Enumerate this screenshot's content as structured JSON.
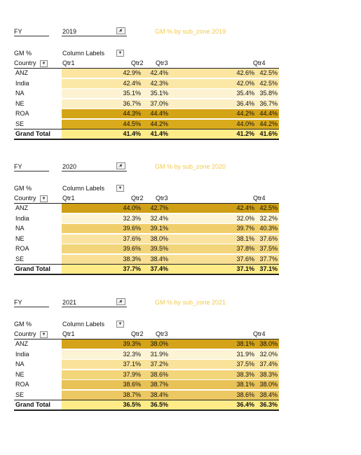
{
  "pivots": [
    {
      "fy_label": "FY",
      "fy_value": "2019",
      "title": "GM % by sub_zone 2019",
      "metric_label": "GM %",
      "column_labels": "Column Labels",
      "country_label": "Country",
      "quarters": [
        "Qtr1",
        "Qtr2",
        "Qtr3",
        "Qtr4"
      ],
      "rows": [
        {
          "name": "ANZ",
          "vals": [
            "42.9%",
            "42.4%",
            "42.6%",
            "42.5%"
          ],
          "color": "#fbe5a0"
        },
        {
          "name": "India",
          "vals": [
            "42.4%",
            "42.3%",
            "42.0%",
            "42.5%"
          ],
          "color": "#fbe7a6"
        },
        {
          "name": "NA",
          "vals": [
            "35.1%",
            "35.1%",
            "35.4%",
            "35.8%"
          ],
          "color": "#fdf3d3"
        },
        {
          "name": "NE",
          "vals": [
            "36.7%",
            "37.0%",
            "36.4%",
            "36.7%"
          ],
          "color": "#fcefc4"
        },
        {
          "name": "ROA",
          "vals": [
            "44.3%",
            "44.4%",
            "44.2%",
            "44.4%"
          ],
          "color": "#d4a417"
        },
        {
          "name": "SE",
          "vals": [
            "44.5%",
            "44.2%",
            "44.0%",
            "44.2%"
          ],
          "color": "#d9aa1c"
        }
      ],
      "total": {
        "name": "Grand Total",
        "vals": [
          "41.4%",
          "41.4%",
          "41.2%",
          "41.6%"
        ],
        "color": "#ffec88"
      }
    },
    {
      "fy_label": "FY",
      "fy_value": "2020",
      "title": "GM % by sub_zone 2020",
      "metric_label": "GM %",
      "column_labels": "Column Labels",
      "country_label": "Country",
      "quarters": [
        "Qtr1",
        "Qtr2",
        "Qtr3",
        "Qtr4"
      ],
      "rows": [
        {
          "name": "ANZ",
          "vals": [
            "44.0%",
            "42.7%",
            "42.4%",
            "42.5%"
          ],
          "color": "#cf9f16"
        },
        {
          "name": "India",
          "vals": [
            "32.3%",
            "32.4%",
            "32.0%",
            "32.2%"
          ],
          "color": "#fdf4d6"
        },
        {
          "name": "NA",
          "vals": [
            "39.6%",
            "39.1%",
            "39.7%",
            "40.3%"
          ],
          "color": "#f0cf6b"
        },
        {
          "name": "NE",
          "vals": [
            "37.6%",
            "38.0%",
            "38.1%",
            "37.6%"
          ],
          "color": "#fae3a0"
        },
        {
          "name": "ROA",
          "vals": [
            "39.6%",
            "39.5%",
            "37.8%",
            "37.5%"
          ],
          "color": "#f2d57b"
        },
        {
          "name": "SE",
          "vals": [
            "38.3%",
            "38.4%",
            "37.6%",
            "37.7%"
          ],
          "color": "#f8df93"
        }
      ],
      "total": {
        "name": "Grand Total",
        "vals": [
          "37.7%",
          "37.4%",
          "37.1%",
          "37.1%"
        ],
        "color": "#ffec88"
      }
    },
    {
      "fy_label": "FY",
      "fy_value": "2021",
      "title": "GM % by sub_zone 2021",
      "metric_label": "GM %",
      "column_labels": "Column Labels",
      "country_label": "Country",
      "quarters": [
        "Qtr1",
        "Qtr2",
        "Qtr3",
        "Qtr4"
      ],
      "rows": [
        {
          "name": "ANZ",
          "vals": [
            "39.3%",
            "38.0%",
            "38.1%",
            "38.0%"
          ],
          "color": "#d4a31a"
        },
        {
          "name": "India",
          "vals": [
            "32.3%",
            "31.9%",
            "31.9%",
            "32.0%"
          ],
          "color": "#fdf4d6"
        },
        {
          "name": "NA",
          "vals": [
            "37.1%",
            "37.2%",
            "37.5%",
            "37.4%"
          ],
          "color": "#f9e39b"
        },
        {
          "name": "NE",
          "vals": [
            "37.9%",
            "38.6%",
            "38.3%",
            "38.3%"
          ],
          "color": "#f3d57a"
        },
        {
          "name": "ROA",
          "vals": [
            "38.6%",
            "38.7%",
            "38.1%",
            "38.0%"
          ],
          "color": "#e9c257"
        },
        {
          "name": "SE",
          "vals": [
            "38.7%",
            "38.4%",
            "38.6%",
            "38.4%"
          ],
          "color": "#ecc862"
        }
      ],
      "total": {
        "name": "Grand Total",
        "vals": [
          "36.5%",
          "36.5%",
          "36.4%",
          "36.3%"
        ],
        "color": "#ffec88"
      }
    }
  ]
}
